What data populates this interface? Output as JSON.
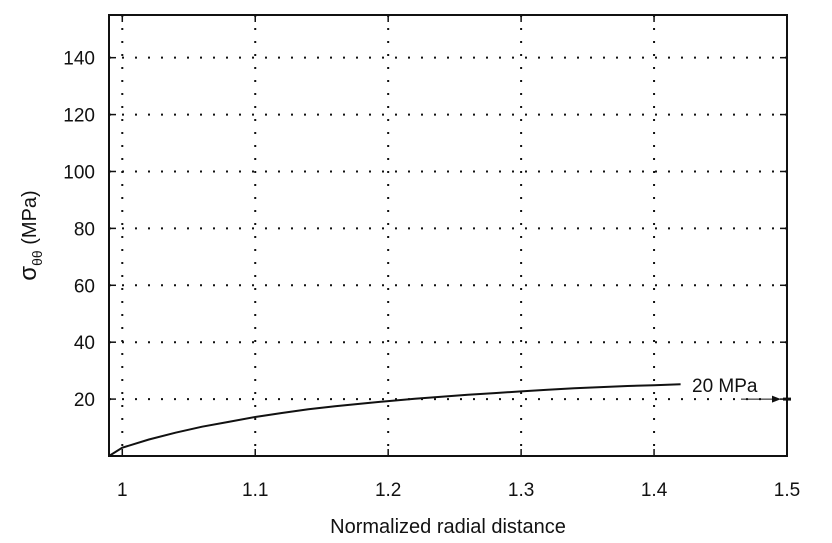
{
  "chart_data": {
    "type": "line",
    "xlabel": "Normalized radial distance",
    "ylabel_base": "σ",
    "ylabel_sub": "θθ",
    "ylabel_unit": " (MPa)",
    "xlim": [
      0.99,
      1.5
    ],
    "ylim": [
      0,
      155
    ],
    "xticks": [
      1,
      1.1,
      1.2,
      1.3,
      1.4,
      1.5
    ],
    "xtick_labels": [
      "1",
      "1.1",
      "1.2",
      "1.3",
      "1.4",
      "1.5"
    ],
    "yticks": [
      20,
      40,
      60,
      80,
      100,
      120,
      140
    ],
    "ytick_labels": [
      "20",
      "40",
      "60",
      "80",
      "100",
      "120",
      "140"
    ],
    "grid": true,
    "series": [
      {
        "x": [
          0.99,
          1.0,
          1.02,
          1.04,
          1.06,
          1.08,
          1.1,
          1.12,
          1.14,
          1.16,
          1.18,
          1.2,
          1.22,
          1.24,
          1.26,
          1.28,
          1.3,
          1.32,
          1.34,
          1.36,
          1.38,
          1.4,
          1.42
        ],
        "y": [
          0,
          2.9,
          5.8,
          8.2,
          10.3,
          12.0,
          13.7,
          15.1,
          16.4,
          17.5,
          18.4,
          19.3,
          20.1,
          20.8,
          21.5,
          22.1,
          22.7,
          23.3,
          23.8,
          24.2,
          24.6,
          24.9,
          25.2
        ]
      }
    ],
    "annotation": {
      "text": "20 MPa",
      "target_x": 1.5,
      "target_y": 20
    }
  }
}
